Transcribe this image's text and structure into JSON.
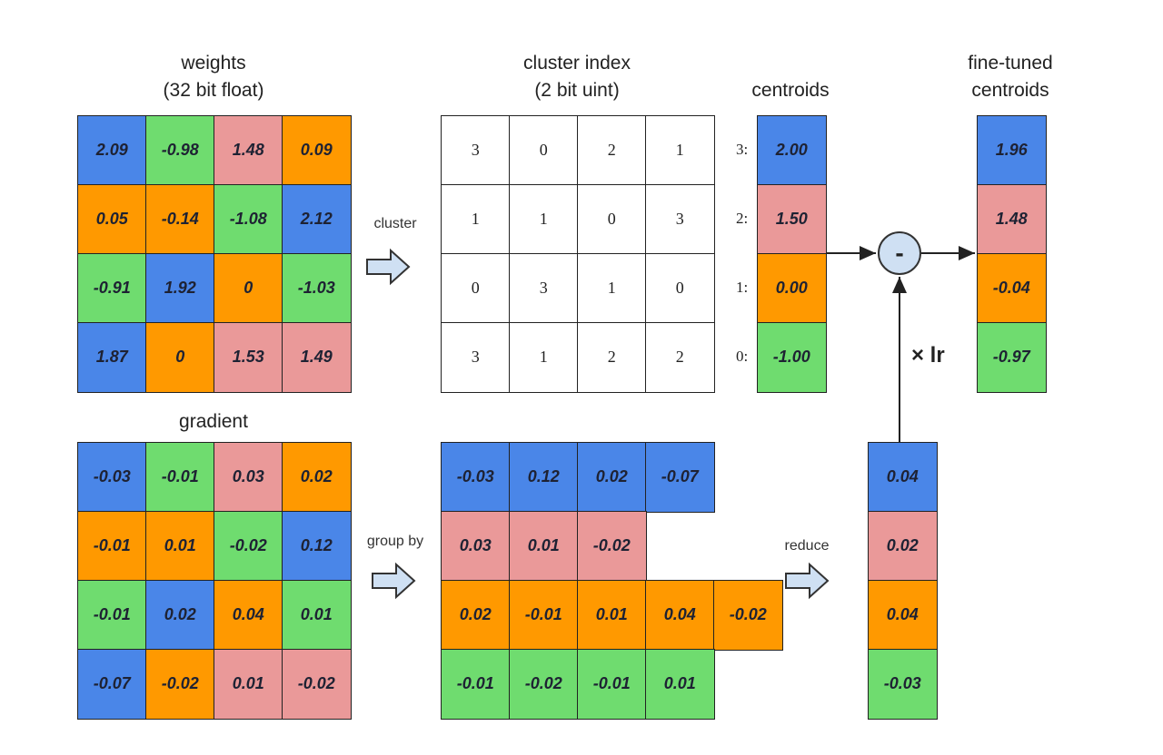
{
  "palette": {
    "3": "#4a86e8",
    "2": "#ea9999",
    "1": "#ff9900",
    "0": "#6fdc6f"
  },
  "labels": {
    "weights_title": "weights",
    "weights_sub": "(32 bit float)",
    "cluster_title": "cluster index",
    "cluster_sub": "(2 bit uint)",
    "centroids": "centroids",
    "finetuned_1": "fine-tuned",
    "finetuned_2": "centroids",
    "gradient": "gradient",
    "cluster_arrow": "cluster",
    "groupby_arrow": "group by",
    "reduce_arrow": "reduce",
    "lr": "× lr",
    "minus": "-"
  },
  "cluster_index": [
    [
      3,
      0,
      2,
      1
    ],
    [
      1,
      1,
      0,
      3
    ],
    [
      0,
      3,
      1,
      0
    ],
    [
      3,
      1,
      2,
      2
    ]
  ],
  "weights": [
    [
      "2.09",
      "-0.98",
      "1.48",
      "0.09"
    ],
    [
      "0.05",
      "-0.14",
      "-1.08",
      "2.12"
    ],
    [
      "-0.91",
      "1.92",
      "0",
      "-1.03"
    ],
    [
      "1.87",
      "0",
      "1.53",
      "1.49"
    ]
  ],
  "centroids": [
    {
      "label": "3:",
      "cluster": 3,
      "value": "2.00"
    },
    {
      "label": "2:",
      "cluster": 2,
      "value": "1.50"
    },
    {
      "label": "1:",
      "cluster": 1,
      "value": "0.00"
    },
    {
      "label": "0:",
      "cluster": 0,
      "value": "-1.00"
    }
  ],
  "fine_tuned": [
    {
      "cluster": 3,
      "value": "1.96"
    },
    {
      "cluster": 2,
      "value": "1.48"
    },
    {
      "cluster": 1,
      "value": "-0.04"
    },
    {
      "cluster": 0,
      "value": "-0.97"
    }
  ],
  "gradient": [
    [
      "-0.03",
      "-0.01",
      "0.03",
      "0.02"
    ],
    [
      "-0.01",
      "0.01",
      "-0.02",
      "0.12"
    ],
    [
      "-0.01",
      "0.02",
      "0.04",
      "0.01"
    ],
    [
      "-0.07",
      "-0.02",
      "0.01",
      "-0.02"
    ]
  ],
  "grouped": [
    {
      "cluster": 3,
      "values": [
        "-0.03",
        "0.12",
        "0.02",
        "-0.07"
      ]
    },
    {
      "cluster": 2,
      "values": [
        "0.03",
        "0.01",
        "-0.02"
      ]
    },
    {
      "cluster": 1,
      "values": [
        "0.02",
        "-0.01",
        "0.01",
        "0.04",
        "-0.02"
      ]
    },
    {
      "cluster": 0,
      "values": [
        "-0.01",
        "-0.02",
        "-0.01",
        "0.01"
      ]
    }
  ],
  "reduced": [
    {
      "cluster": 3,
      "value": "0.04"
    },
    {
      "cluster": 2,
      "value": "0.02"
    },
    {
      "cluster": 1,
      "value": "0.04"
    },
    {
      "cluster": 0,
      "value": "-0.03"
    }
  ]
}
